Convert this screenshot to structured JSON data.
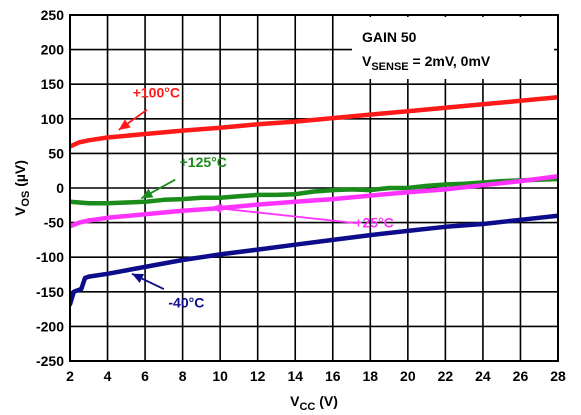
{
  "chart_data": {
    "type": "line",
    "title": "",
    "xlabel": "V<sub>CC</sub> (V)",
    "xlabel_main": "V",
    "xlabel_sub": "CC",
    "xlabel_unit": " (V)",
    "ylabel_main": "V",
    "ylabel_sub": "OS",
    "ylabel_unit": " (µV)",
    "xlim": [
      2,
      28
    ],
    "ylim": [
      -250,
      250
    ],
    "xticks": [
      2,
      4,
      6,
      8,
      10,
      12,
      14,
      16,
      18,
      20,
      22,
      24,
      26,
      28
    ],
    "yticks": [
      -250,
      -200,
      -150,
      -100,
      -50,
      0,
      50,
      100,
      150,
      200,
      250
    ],
    "grid": true,
    "legend": "none",
    "annotation_box": {
      "line1": "GAIN 50",
      "line2_main": "V",
      "line2_sub": "SENSE",
      "line2_rest": " = 2mV, 0mV"
    },
    "series": [
      {
        "name": "+100°C",
        "color": "#ff1a1a",
        "x": [
          2.0,
          2.5,
          3.0,
          4.0,
          6.0,
          8.0,
          10.0,
          12.0,
          14.0,
          16.0,
          18.0,
          20.0,
          22.0,
          24.0,
          26.0,
          28.0
        ],
        "y": [
          60,
          66,
          69,
          73,
          78,
          83,
          87,
          92,
          96,
          101,
          106,
          111,
          116,
          121,
          126,
          131
        ]
      },
      {
        "name": "+125°C",
        "color": "#1a8c1a",
        "x": [
          2.0,
          2.5,
          3.0,
          4.0,
          5.0,
          6.0,
          7.0,
          8.0,
          9.0,
          10.0,
          11.0,
          12.0,
          13.0,
          14.0,
          15.0,
          16.0,
          17.0,
          18.0,
          19.0,
          20.0,
          21.0,
          22.0,
          23.0,
          24.0,
          25.0,
          26.0,
          27.0,
          28.0
        ],
        "y": [
          -20,
          -21,
          -22,
          -22,
          -21,
          -20,
          -17,
          -16,
          -14,
          -14,
          -12,
          -10,
          -10,
          -9,
          -5,
          -3,
          -2,
          -3,
          0,
          0,
          3,
          5,
          6,
          8,
          10,
          11,
          12,
          13
        ]
      },
      {
        "name": "+25°C",
        "color": "#ff33ff",
        "x": [
          2.0,
          2.5,
          3.0,
          4.0,
          6.0,
          8.0,
          10.0,
          12.0,
          14.0,
          16.0,
          18.0,
          20.0,
          22.0,
          24.0,
          26.0,
          28.0
        ],
        "y": [
          -55,
          -50,
          -47,
          -43,
          -38,
          -33,
          -29,
          -24,
          -20,
          -16,
          -11,
          -6,
          -2,
          4,
          10,
          17
        ]
      },
      {
        "name": "-40°C",
        "color": "#0d0d8c",
        "x": [
          2.0,
          2.2,
          2.4,
          2.6,
          2.8,
          3.0,
          4.0,
          6.0,
          8.0,
          10.0,
          12.0,
          14.0,
          16.0,
          18.0,
          20.0,
          22.0,
          24.0,
          26.0,
          28.0
        ],
        "y": [
          -168,
          -150,
          -148,
          -146,
          -130,
          -128,
          -124,
          -114,
          -104,
          -96,
          -89,
          -82,
          -75,
          -68,
          -62,
          -56,
          -52,
          -46,
          -40
        ]
      }
    ],
    "annotations": [
      {
        "text": "+100°C",
        "color": "#ff1a1a",
        "tx": 6.6,
        "ty": 131,
        "ax1": 6.1,
        "ay1": 113,
        "ax2": 4.6,
        "ay2": 84
      },
      {
        "text": "+125°C",
        "color": "#1a8c1a",
        "tx": 9.1,
        "ty": 30,
        "ax1": 7.6,
        "ay1": 12,
        "ax2": 5.8,
        "ay2": -15
      },
      {
        "text": "+25°C",
        "color": "#ff33ff",
        "tx": 18.2,
        "ty": -57,
        "ax1": 17.3,
        "ay1": -51,
        "ax2": 9.5,
        "ay2": -28
      },
      {
        "text": "-40°C",
        "color": "#0d0d8c",
        "tx": 8.2,
        "ty": -173,
        "ax1": 7.0,
        "ay1": -146,
        "ax2": 5.3,
        "ay2": -124
      }
    ]
  }
}
